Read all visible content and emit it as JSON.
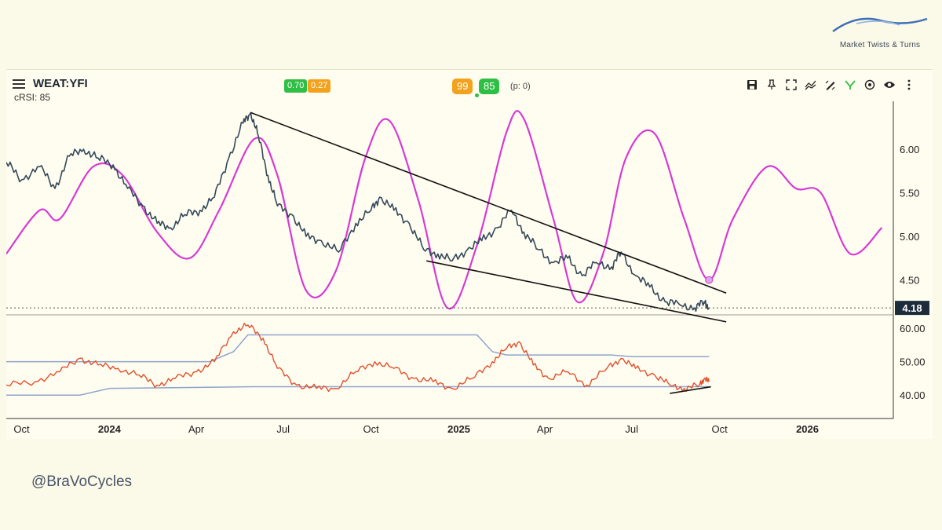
{
  "brand": {
    "name": "Market Twists & Turns"
  },
  "handle": "@BraVoCycles",
  "header": {
    "symbol": "WEAT:YFI",
    "subtitle": "cRSI: 85",
    "badges_left": [
      "0.70",
      "0.27"
    ],
    "badges_mid": [
      "99",
      "85"
    ],
    "p_label": "(p: 0)"
  },
  "colors": {
    "price": "#33495a",
    "cycle": "#d63ad6",
    "crsi": "#e0512e",
    "band": "#8ea4cc",
    "trendline": "#111111",
    "bg": "#fffdf0"
  },
  "icons": [
    "save-icon",
    "pin-icon",
    "fullscreen-icon",
    "compare-icon",
    "draw-icon",
    "indicator-icon",
    "target-icon",
    "eye-icon",
    "more-icon"
  ],
  "chart_data": [
    {
      "type": "line",
      "title": "WEAT:YFI",
      "x_ticks": [
        "Oct",
        "2024",
        "Apr",
        "Jul",
        "Oct",
        "2025",
        "Apr",
        "Jul",
        "Oct",
        "2026"
      ],
      "y_ticks": [
        "6.00",
        "5.50",
        "5.00",
        "4.50"
      ],
      "ylim": [
        4.1,
        6.55
      ],
      "last_value": "4.18",
      "grid": false,
      "series": [
        {
          "role": "price",
          "points": [
            [
              "2023-09-15",
              5.85
            ],
            [
              "2023-10-01",
              5.65
            ],
            [
              "2023-10-20",
              5.8
            ],
            [
              "2023-11-05",
              5.55
            ],
            [
              "2023-11-20",
              5.92
            ],
            [
              "2023-12-05",
              6.0
            ],
            [
              "2023-12-20",
              5.9
            ],
            [
              "2024-01-05",
              5.82
            ],
            [
              "2024-01-20",
              5.55
            ],
            [
              "2024-02-05",
              5.35
            ],
            [
              "2024-02-20",
              5.15
            ],
            [
              "2024-03-05",
              5.1
            ],
            [
              "2024-03-20",
              5.25
            ],
            [
              "2024-04-05",
              5.3
            ],
            [
              "2024-04-20",
              5.45
            ],
            [
              "2024-05-05",
              5.9
            ],
            [
              "2024-05-20",
              6.3
            ],
            [
              "2024-05-28",
              6.42
            ],
            [
              "2024-06-05",
              6.15
            ],
            [
              "2024-06-15",
              5.7
            ],
            [
              "2024-06-25",
              5.35
            ],
            [
              "2024-07-10",
              5.25
            ],
            [
              "2024-07-25",
              5.0
            ],
            [
              "2024-08-10",
              4.95
            ],
            [
              "2024-08-28",
              4.82
            ],
            [
              "2024-09-15",
              5.15
            ],
            [
              "2024-10-01",
              5.3
            ],
            [
              "2024-10-10",
              5.45
            ],
            [
              "2024-10-25",
              5.3
            ],
            [
              "2024-11-10",
              5.15
            ],
            [
              "2024-11-25",
              4.85
            ],
            [
              "2024-12-10",
              4.8
            ],
            [
              "2024-12-25",
              4.72
            ],
            [
              "2025-01-10",
              4.85
            ],
            [
              "2025-01-25",
              4.95
            ],
            [
              "2025-02-10",
              5.1
            ],
            [
              "2025-02-25",
              5.3
            ],
            [
              "2025-03-10",
              5.05
            ],
            [
              "2025-03-25",
              4.85
            ],
            [
              "2025-04-10",
              4.7
            ],
            [
              "2025-04-25",
              4.75
            ],
            [
              "2025-05-10",
              4.55
            ],
            [
              "2025-05-25",
              4.7
            ],
            [
              "2025-06-10",
              4.65
            ],
            [
              "2025-06-20",
              4.82
            ],
            [
              "2025-07-05",
              4.55
            ],
            [
              "2025-07-20",
              4.42
            ],
            [
              "2025-08-05",
              4.25
            ],
            [
              "2025-08-20",
              4.22
            ],
            [
              "2025-09-05",
              4.18
            ],
            [
              "2025-09-15",
              4.25
            ],
            [
              "2025-09-20",
              4.18
            ]
          ]
        },
        {
          "role": "cycle",
          "points": [
            [
              "2023-09-15",
              4.8
            ],
            [
              "2023-10-20",
              5.3
            ],
            [
              "2023-11-10",
              5.2
            ],
            [
              "2023-12-15",
              5.8
            ],
            [
              "2024-01-15",
              5.7
            ],
            [
              "2024-02-20",
              5.05
            ],
            [
              "2024-03-25",
              4.75
            ],
            [
              "2024-04-25",
              5.3
            ],
            [
              "2024-06-01",
              6.12
            ],
            [
              "2024-06-25",
              5.7
            ],
            [
              "2024-07-25",
              4.38
            ],
            [
              "2024-08-25",
              4.6
            ],
            [
              "2024-09-25",
              5.9
            ],
            [
              "2024-10-20",
              6.33
            ],
            [
              "2024-11-20",
              5.4
            ],
            [
              "2024-12-20",
              4.18
            ],
            [
              "2025-01-20",
              4.9
            ],
            [
              "2025-02-20",
              6.2
            ],
            [
              "2025-03-10",
              6.35
            ],
            [
              "2025-04-10",
              5.2
            ],
            [
              "2025-05-05",
              4.25
            ],
            [
              "2025-06-01",
              4.8
            ],
            [
              "2025-06-25",
              5.9
            ],
            [
              "2025-07-25",
              6.18
            ],
            [
              "2025-08-25",
              5.2
            ],
            [
              "2025-09-20",
              4.5
            ],
            [
              "2025-10-15",
              5.2
            ],
            [
              "2025-11-20",
              5.8
            ],
            [
              "2025-12-20",
              5.55
            ],
            [
              "2026-01-15",
              5.5
            ],
            [
              "2026-02-15",
              4.8
            ],
            [
              "2026-03-20",
              5.1
            ]
          ]
        },
        {
          "role": "trendline-upper",
          "points": [
            [
              "2024-05-28",
              6.42
            ],
            [
              "2025-10-08",
              4.35
            ]
          ]
        },
        {
          "role": "trendline-lower",
          "points": [
            [
              "2024-11-28",
              4.72
            ],
            [
              "2025-10-08",
              4.02
            ]
          ]
        }
      ]
    },
    {
      "type": "line",
      "title": "cRSI",
      "y_ticks": [
        "60.00",
        "50.00",
        "40.00"
      ],
      "ylim": [
        33,
        64
      ],
      "series": [
        {
          "role": "crsi",
          "points": [
            [
              "2023-09-15",
              43
            ],
            [
              "2023-10-15",
              44
            ],
            [
              "2023-11-10",
              47
            ],
            [
              "2023-12-01",
              51
            ],
            [
              "2023-12-20",
              49
            ],
            [
              "2024-01-10",
              48
            ],
            [
              "2024-02-01",
              46
            ],
            [
              "2024-02-20",
              43
            ],
            [
              "2024-03-10",
              45
            ],
            [
              "2024-04-01",
              47
            ],
            [
              "2024-04-20",
              50
            ],
            [
              "2024-05-10",
              59
            ],
            [
              "2024-05-25",
              61
            ],
            [
              "2024-06-10",
              57
            ],
            [
              "2024-06-25",
              48
            ],
            [
              "2024-07-15",
              43
            ],
            [
              "2024-08-05",
              42
            ],
            [
              "2024-08-25",
              42
            ],
            [
              "2024-09-15",
              47
            ],
            [
              "2024-10-05",
              50
            ],
            [
              "2024-10-25",
              48
            ],
            [
              "2024-11-15",
              45
            ],
            [
              "2024-12-05",
              44
            ],
            [
              "2024-12-25",
              42
            ],
            [
              "2025-01-15",
              45
            ],
            [
              "2025-02-05",
              50
            ],
            [
              "2025-02-20",
              54
            ],
            [
              "2025-03-05",
              56
            ],
            [
              "2025-03-20",
              49
            ],
            [
              "2025-04-05",
              45
            ],
            [
              "2025-04-25",
              47
            ],
            [
              "2025-05-15",
              43
            ],
            [
              "2025-06-05",
              48
            ],
            [
              "2025-06-20",
              51
            ],
            [
              "2025-07-05",
              48
            ],
            [
              "2025-07-25",
              46
            ],
            [
              "2025-08-10",
              43
            ],
            [
              "2025-08-25",
              42
            ],
            [
              "2025-09-10",
              43
            ],
            [
              "2025-09-15",
              45
            ],
            [
              "2025-09-20",
              44
            ]
          ]
        },
        {
          "role": "band-upper",
          "points": [
            [
              "2023-09-15",
              50
            ],
            [
              "2024-04-15",
              50
            ],
            [
              "2024-05-10",
              53
            ],
            [
              "2024-05-25",
              58
            ],
            [
              "2025-01-20",
              58
            ],
            [
              "2025-02-05",
              53
            ],
            [
              "2025-02-20",
              52
            ],
            [
              "2025-06-10",
              52
            ],
            [
              "2025-07-01",
              51.5
            ],
            [
              "2025-09-20",
              51.5
            ]
          ]
        },
        {
          "role": "band-lower",
          "points": [
            [
              "2023-09-15",
              40
            ],
            [
              "2023-12-01",
              40
            ],
            [
              "2024-01-01",
              42
            ],
            [
              "2024-06-01",
              42.5
            ],
            [
              "2025-09-20",
              42.5
            ]
          ]
        },
        {
          "role": "trendline",
          "points": [
            [
              "2025-08-10",
              40.5
            ],
            [
              "2025-09-22",
              42.5
            ]
          ]
        }
      ]
    }
  ]
}
